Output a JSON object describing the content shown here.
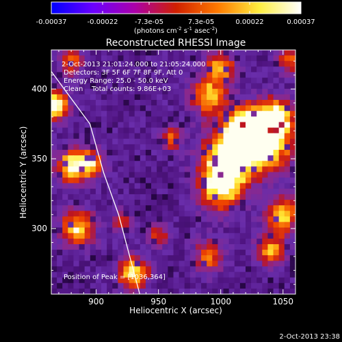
{
  "colorbar": {
    "ticks": [
      "-0.00037",
      "-0.00022",
      "-7.3e-05",
      "7.3e-05",
      "0.00022",
      "0.00037"
    ],
    "unit_main": "(photons cm",
    "unit_sup1": "-2",
    "unit_mid": " s",
    "unit_sup2": "-1",
    "unit_end": " asec",
    "unit_sup3": "-2",
    "unit_close": ")",
    "colors": [
      "#0000ff",
      "#6a00ff",
      "#aa00aa",
      "#d02000",
      "#ff7a00",
      "#ffee40",
      "#ffffff"
    ]
  },
  "title": "Reconstructed RHESSI Image",
  "info": {
    "time_range": "2-Oct-2013 21:01:24.000 to 21:05:24.000",
    "detectors": "Detectors: 3F 5F 6F 7F 8F 9F, Att 0",
    "energy": "Energy Range: 25.0 - 50.0 keV",
    "clean": "Clean    Total counts: 9.86E+03",
    "peak": "Position of Peak = [1036,364]"
  },
  "footer_date": "2-Oct-2013 23:38",
  "chart_data": {
    "type": "heatmap",
    "title": "Reconstructed RHESSI Image",
    "xlabel": "Heliocentric X (arcsec)",
    "ylabel": "Heliocentric Y (arcsec)",
    "xlim": [
      864,
      1060
    ],
    "ylim": [
      253,
      428
    ],
    "xticks": [
      "900",
      "950",
      "1000",
      "1050"
    ],
    "yticks": [
      "300",
      "350",
      "400"
    ],
    "xtick_values": [
      900,
      950,
      1000,
      1050
    ],
    "ytick_values": [
      300,
      350,
      400
    ],
    "colorbar_range": [
      -0.00037,
      0.00037
    ],
    "peak_position": [
      1036,
      364
    ],
    "limb_curve": [
      [
        862,
        415
      ],
      [
        895,
        375
      ],
      [
        906,
        340
      ],
      [
        918,
        310
      ],
      [
        935,
        253
      ]
    ],
    "hot_spots": [
      {
        "x": 1036,
        "y": 364,
        "r": 14,
        "v": 1.0
      },
      {
        "x": 1008,
        "y": 352,
        "r": 14,
        "v": 0.9
      },
      {
        "x": 1020,
        "y": 372,
        "r": 10,
        "v": 0.85
      },
      {
        "x": 1000,
        "y": 330,
        "r": 12,
        "v": 0.7
      },
      {
        "x": 1045,
        "y": 380,
        "r": 8,
        "v": 0.75
      },
      {
        "x": 867,
        "y": 388,
        "r": 7,
        "v": 0.9
      },
      {
        "x": 880,
        "y": 345,
        "r": 8,
        "v": 0.75
      },
      {
        "x": 895,
        "y": 346,
        "r": 7,
        "v": 0.7
      },
      {
        "x": 930,
        "y": 268,
        "r": 8,
        "v": 0.75
      },
      {
        "x": 885,
        "y": 300,
        "r": 9,
        "v": 0.7
      },
      {
        "x": 960,
        "y": 365,
        "r": 6,
        "v": 0.45
      },
      {
        "x": 990,
        "y": 395,
        "r": 10,
        "v": 0.6
      },
      {
        "x": 1000,
        "y": 415,
        "r": 8,
        "v": 0.55
      },
      {
        "x": 1050,
        "y": 310,
        "r": 9,
        "v": 0.65
      },
      {
        "x": 1040,
        "y": 285,
        "r": 8,
        "v": 0.55
      },
      {
        "x": 990,
        "y": 280,
        "r": 8,
        "v": 0.5
      },
      {
        "x": 880,
        "y": 420,
        "r": 6,
        "v": 0.55
      },
      {
        "x": 920,
        "y": 305,
        "r": 5,
        "v": 0.4
      },
      {
        "x": 950,
        "y": 295,
        "r": 6,
        "v": 0.35
      },
      {
        "x": 1055,
        "y": 420,
        "r": 6,
        "v": 0.5
      }
    ]
  }
}
